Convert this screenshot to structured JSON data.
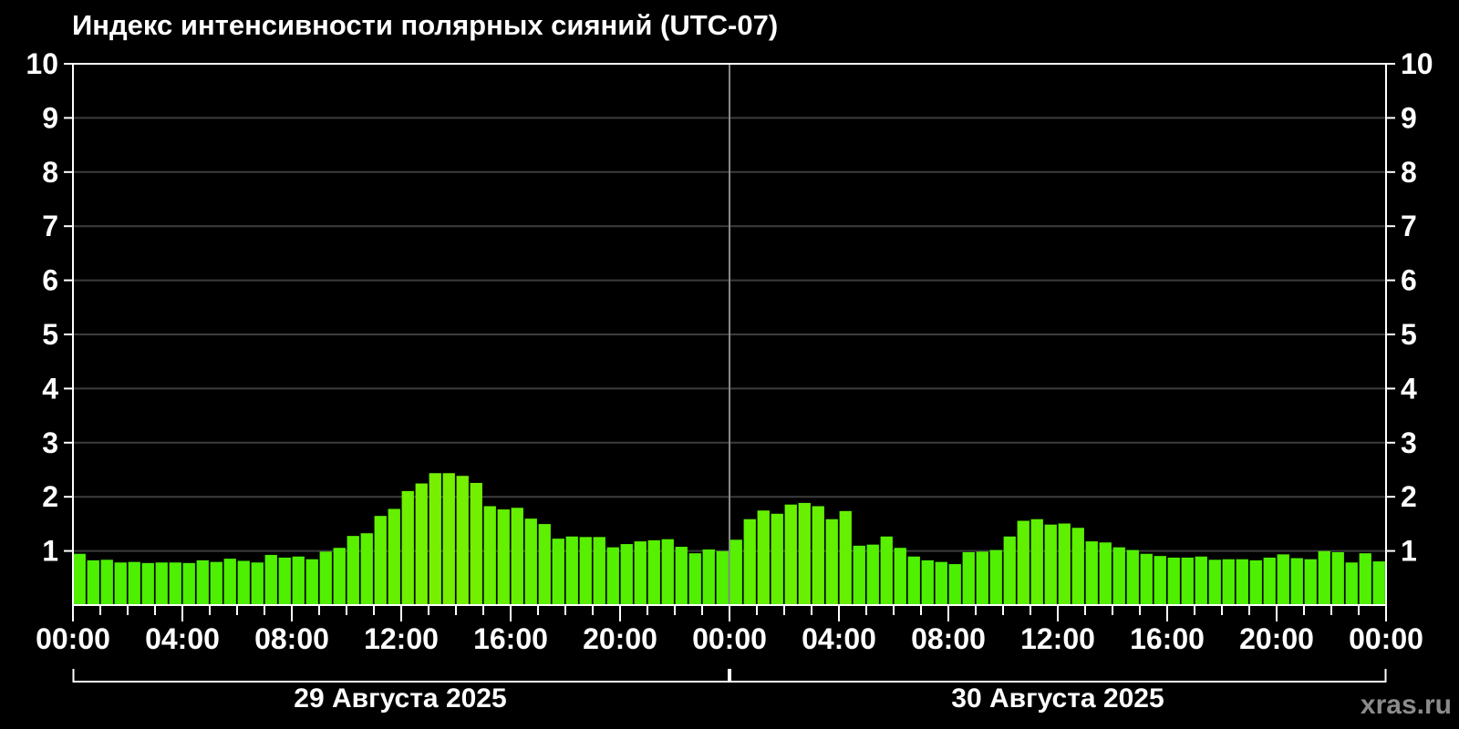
{
  "title": "Индекс интенсивности полярных сияний (UTC-07)",
  "watermark": "xras.ru",
  "chart_data": {
    "type": "bar",
    "title": "Индекс интенсивности полярных сияний (UTC-07)",
    "xlabel": "",
    "ylabel": "",
    "ylim": [
      0,
      10
    ],
    "yticks": [
      1,
      2,
      3,
      4,
      5,
      6,
      7,
      8,
      9,
      10
    ],
    "grid": true,
    "legend": "none",
    "interval_minutes": 30,
    "hours_total": 48,
    "x_major_tick_hours": [
      0,
      4,
      8,
      12,
      16,
      20,
      24,
      28,
      32,
      36,
      40,
      44,
      48
    ],
    "x_major_tick_labels": [
      "00:00",
      "04:00",
      "08:00",
      "12:00",
      "16:00",
      "20:00",
      "00:00",
      "04:00",
      "08:00",
      "12:00",
      "16:00",
      "20:00",
      "00:00"
    ],
    "days": [
      {
        "label": "29 Августа 2025",
        "start_hour": 0,
        "end_hour": 24
      },
      {
        "label": "30 Августа 2025",
        "start_hour": 24,
        "end_hour": 48
      }
    ],
    "series": [
      {
        "name": "aurora-intensity-index",
        "values": [
          0.93,
          0.81,
          0.82,
          0.77,
          0.78,
          0.76,
          0.77,
          0.77,
          0.76,
          0.81,
          0.78,
          0.84,
          0.8,
          0.77,
          0.91,
          0.86,
          0.88,
          0.83,
          0.97,
          1.04,
          1.26,
          1.31,
          1.63,
          1.76,
          2.09,
          2.23,
          2.42,
          2.42,
          2.37,
          2.24,
          1.81,
          1.75,
          1.78,
          1.58,
          1.48,
          1.21,
          1.25,
          1.24,
          1.24,
          1.05,
          1.11,
          1.16,
          1.18,
          1.2,
          1.06,
          0.94,
          1.01,
          0.98,
          1.19,
          1.57,
          1.73,
          1.67,
          1.84,
          1.87,
          1.81,
          1.57,
          1.72,
          1.08,
          1.1,
          1.25,
          1.04,
          0.88,
          0.81,
          0.78,
          0.74,
          0.96,
          0.97,
          1.0,
          1.25,
          1.54,
          1.57,
          1.47,
          1.49,
          1.41,
          1.16,
          1.14,
          1.05,
          1.0,
          0.93,
          0.89,
          0.86,
          0.86,
          0.88,
          0.82,
          0.83,
          0.83,
          0.81,
          0.86,
          0.92,
          0.85,
          0.83,
          0.98,
          0.96,
          0.77,
          0.94,
          0.79
        ]
      }
    ],
    "colors": {
      "background": "#000000",
      "axis": "#ffffff",
      "grid": "#3d3d3d",
      "day_divider": "#888888",
      "bar_low": "#2fee00",
      "bar_high": "#72ef00",
      "text": "#ffffff",
      "watermark": "#8c8c8c"
    }
  }
}
